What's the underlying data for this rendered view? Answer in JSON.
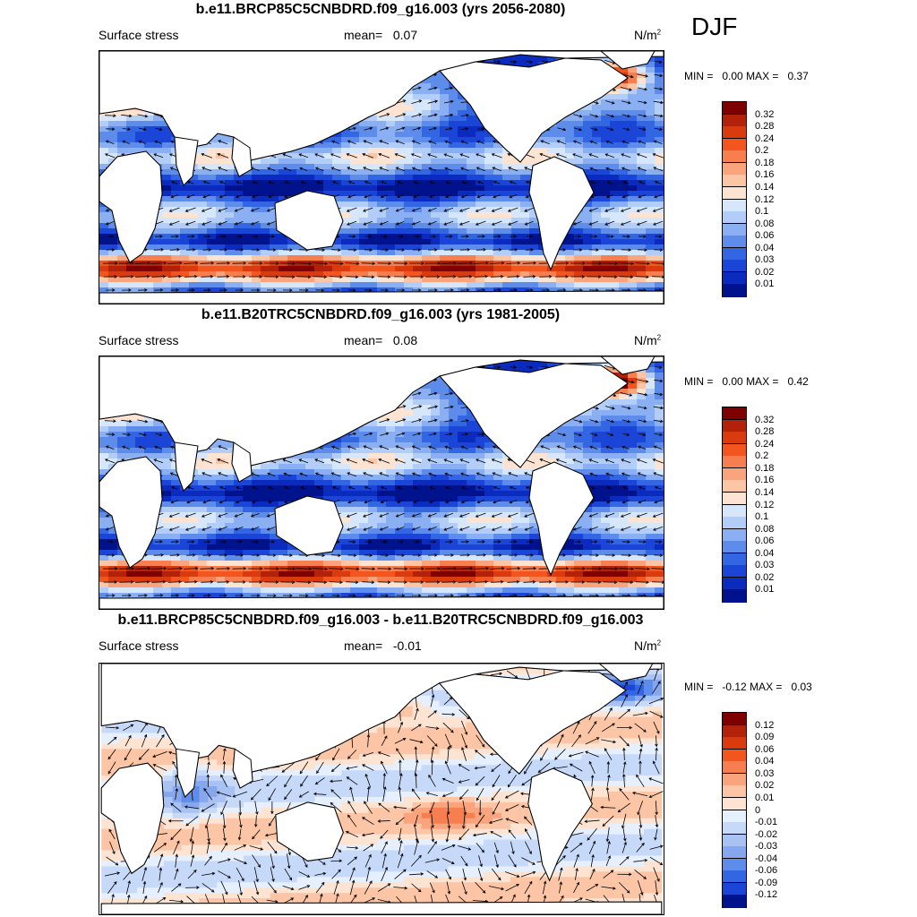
{
  "season": "DJF",
  "panels": [
    {
      "title": "b.e11.BRCP85C5CNBDRD.f09_g16.003 (yrs 2056-2080)",
      "variable": "Surface stress",
      "mean_label": "mean=",
      "mean_value": "0.07",
      "units": "N/m",
      "units_exp": "2",
      "min_label": "MIN =",
      "min_value": "0.00",
      "max_label": "MAX =",
      "max_value": "0.37",
      "colorbar_ticks": [
        "0.32",
        "0.28",
        "0.24",
        "0.2",
        "0.18",
        "0.16",
        "0.14",
        "0.12",
        "0.1",
        "0.08",
        "0.06",
        "0.04",
        "0.03",
        "0.02",
        "0.01"
      ]
    },
    {
      "title": "b.e11.B20TRC5CNBDRD.f09_g16.003 (yrs 1981-2005)",
      "variable": "Surface stress",
      "mean_label": "mean=",
      "mean_value": "0.08",
      "units": "N/m",
      "units_exp": "2",
      "min_label": "MIN =",
      "min_value": "0.00",
      "max_label": "MAX =",
      "max_value": "0.42",
      "colorbar_ticks": [
        "0.32",
        "0.28",
        "0.24",
        "0.2",
        "0.18",
        "0.16",
        "0.14",
        "0.12",
        "0.1",
        "0.08",
        "0.06",
        "0.04",
        "0.03",
        "0.02",
        "0.01"
      ]
    },
    {
      "title": "b.e11.BRCP85C5CNBDRD.f09_g16.003 - b.e11.B20TRC5CNBDRD.f09_g16.003",
      "variable": "Surface stress",
      "mean_label": "mean=",
      "mean_value": "-0.01",
      "units": "N/m",
      "units_exp": "2",
      "min_label": "MIN =",
      "min_value": "-0.12",
      "max_label": "MAX =",
      "max_value": "0.03",
      "colorbar_ticks": [
        "0.12",
        "0.09",
        "0.06",
        "0.04",
        "0.03",
        "0.02",
        "0.01",
        "0",
        "-0.01",
        "-0.02",
        "-0.03",
        "-0.04",
        "-0.06",
        "-0.09",
        "-0.12"
      ]
    }
  ],
  "colors": {
    "abs_scale": [
      "#7f0000",
      "#b2220a",
      "#d93b0e",
      "#f2561e",
      "#f77e4e",
      "#f9a47d",
      "#fbc5a6",
      "#fde4d2",
      "#d7e7fb",
      "#b2cdf7",
      "#8aaff2",
      "#5e8ceb",
      "#3366e3",
      "#1a45d6",
      "#0a2bbd",
      "#00128c"
    ],
    "diff_scale": [
      "#7f0000",
      "#b2220a",
      "#d93b0e",
      "#f2561e",
      "#f77e4e",
      "#f9a47d",
      "#fbc5a6",
      "#fde4d2",
      "#e6effd",
      "#c7d9f9",
      "#a8c2f4",
      "#86a7ee",
      "#5e8ceb",
      "#3366e3",
      "#1a45d6",
      "#00128c"
    ],
    "land": "#ffffff",
    "coast": "#000000"
  }
}
